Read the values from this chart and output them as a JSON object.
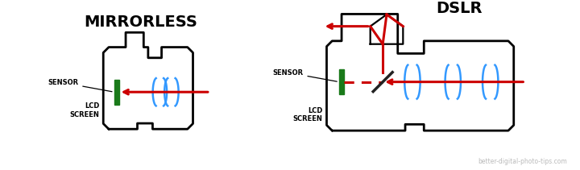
{
  "bg_color": "#ffffff",
  "title_mirrorless": "MIRRORLESS",
  "title_dslr": "DSLR",
  "watermark": "better-digital-photo-tips.com",
  "sensor_label": "SENSOR",
  "lcd_label": "LCD\nSCREEN",
  "colors": {
    "body": "#000000",
    "sensor": "#1a7a1a",
    "red": "#cc0000",
    "blue": "#3399ff",
    "mirror": "#222222"
  }
}
